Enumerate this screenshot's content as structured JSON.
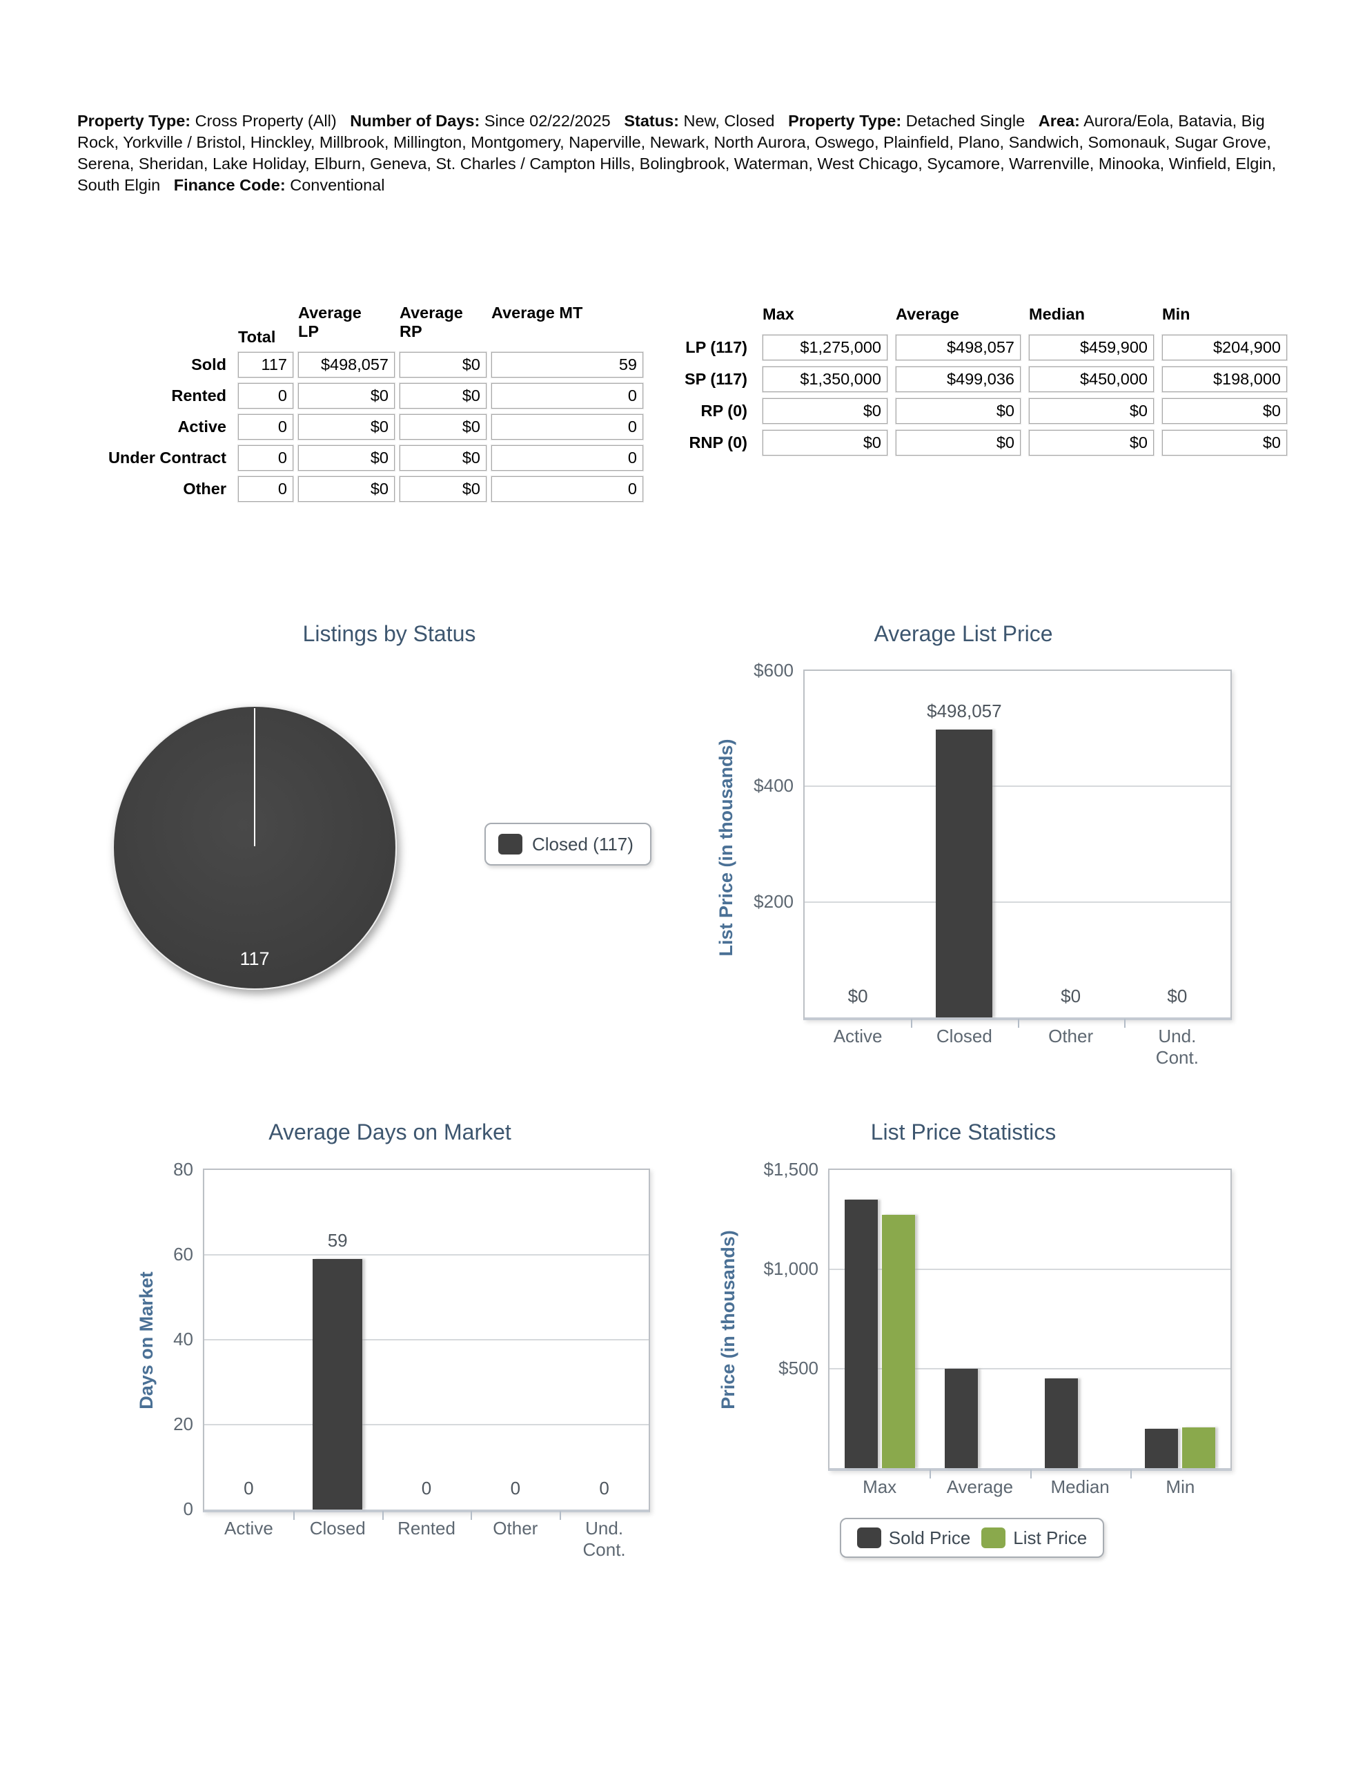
{
  "report_header": {
    "segments": [
      {
        "label": "Property Type:",
        "value": "Cross Property (All)"
      },
      {
        "label": "Number of Days:",
        "value": "Since 02/22/2025"
      },
      {
        "label": "Status:",
        "value": "New, Closed"
      },
      {
        "label": "Property Type:",
        "value": "Detached Single"
      },
      {
        "label": "Area:",
        "value": "Aurora/Eola, Batavia, Big Rock, Yorkville / Bristol, Hinckley, Millbrook, Millington, Montgomery, Naperville, Newark, North Aurora, Oswego, Plainfield, Plano, Sandwich, Somonauk, Sugar Grove, Serena, Sheridan, Lake Holiday, Elburn, Geneva, St. Charles / Campton Hills, Bolingbrook, Waterman, West Chicago, Sycamore, Warrenville, Minooka, Winfield, Elgin, South Elgin"
      },
      {
        "label": "Finance Code:",
        "value": "Conventional"
      }
    ]
  },
  "summary_table": {
    "column_headers": [
      "Total",
      "Average LP",
      "Average RP",
      "Average MT"
    ],
    "rows": [
      {
        "label": "Sold",
        "total": "117",
        "average_lp": "$498,057",
        "average_rp": "$0",
        "average_mt": "59"
      },
      {
        "label": "Rented",
        "total": "0",
        "average_lp": "$0",
        "average_rp": "$0",
        "average_mt": "0"
      },
      {
        "label": "Active",
        "total": "0",
        "average_lp": "$0",
        "average_rp": "$0",
        "average_mt": "0"
      },
      {
        "label": "Under Contract",
        "total": "0",
        "average_lp": "$0",
        "average_rp": "$0",
        "average_mt": "0"
      },
      {
        "label": "Other",
        "total": "0",
        "average_lp": "$0",
        "average_rp": "$0",
        "average_mt": "0"
      }
    ]
  },
  "stats_table": {
    "column_headers": [
      "Max",
      "Average",
      "Median",
      "Min"
    ],
    "rows": [
      {
        "label": "LP (117)",
        "max": "$1,275,000",
        "average": "$498,057",
        "median": "$459,900",
        "min": "$204,900"
      },
      {
        "label": "SP (117)",
        "max": "$1,350,000",
        "average": "$499,036",
        "median": "$450,000",
        "min": "$198,000"
      },
      {
        "label": "RP (0)",
        "max": "$0",
        "average": "$0",
        "median": "$0",
        "min": "$0"
      },
      {
        "label": "RNP (0)",
        "max": "$0",
        "average": "$0",
        "median": "$0",
        "min": "$0"
      }
    ]
  },
  "chart_data": [
    {
      "id": "listings-by-status",
      "type": "pie",
      "title": "Listings by Status",
      "slices": [
        {
          "label": "Closed (117)",
          "value": 117,
          "percent": 100,
          "color": "#404040",
          "data_label": "117"
        }
      ],
      "legend_position": "right"
    },
    {
      "id": "average-list-price",
      "type": "bar",
      "title": "Average List Price",
      "ylabel": "List Price (in thousands)",
      "ylim": [
        0,
        600
      ],
      "grid": true,
      "yticks": [
        {
          "value": 600,
          "label": "$600"
        },
        {
          "value": 400,
          "label": "$400"
        },
        {
          "value": 200,
          "label": "$200"
        }
      ],
      "categories": [
        "Active",
        "Closed",
        "Other",
        "Und. Cont."
      ],
      "values": [
        0,
        498.057,
        0,
        0
      ],
      "bar_labels": [
        "$0",
        "$498,057",
        "$0",
        "$0"
      ],
      "bar_color": "#404040"
    },
    {
      "id": "average-days-on-market",
      "type": "bar",
      "title": "Average Days on Market",
      "ylabel": "Days on Market",
      "ylim": [
        0,
        80
      ],
      "grid": true,
      "yticks": [
        {
          "value": 80,
          "label": "80"
        },
        {
          "value": 60,
          "label": "60"
        },
        {
          "value": 40,
          "label": "40"
        },
        {
          "value": 20,
          "label": "20"
        },
        {
          "value": 0,
          "label": "0"
        }
      ],
      "categories": [
        "Active",
        "Closed",
        "Rented",
        "Other",
        "Und. Cont."
      ],
      "values": [
        0,
        59,
        0,
        0,
        0
      ],
      "bar_labels": [
        "0",
        "59",
        "0",
        "0",
        "0"
      ],
      "bar_color": "#404040"
    },
    {
      "id": "list-price-statistics",
      "type": "bar",
      "title": "List Price Statistics",
      "ylabel": "Price (in thousands)",
      "ylim": [
        0,
        1500
      ],
      "grid": true,
      "yticks": [
        {
          "value": 1500,
          "label": "$1,500"
        },
        {
          "value": 1000,
          "label": "$1,000"
        },
        {
          "value": 500,
          "label": "$500"
        }
      ],
      "categories": [
        "Max",
        "Average",
        "Median",
        "Min"
      ],
      "series": [
        {
          "name": "Sold Price",
          "color": "#404040",
          "values": [
            1350,
            499.036,
            450,
            198
          ],
          "bar_visible": [
            true,
            true,
            true,
            true
          ]
        },
        {
          "name": "List Price",
          "color": "#8aa94c",
          "values": [
            1275,
            498.057,
            459.9,
            204.9
          ],
          "bar_visible": [
            true,
            false,
            false,
            true
          ]
        }
      ],
      "legend_position": "bottom"
    }
  ],
  "colors": {
    "chart_title": "#3d566f",
    "axis_title": "#4a7095",
    "tick_label": "#5d6771",
    "value_label": "#4e565e",
    "bar_dark": "#404040",
    "bar_green": "#8aa94c",
    "legend_text": "#3e4953",
    "grid_line": "#d6d9dc",
    "plot_border": "#bcc0c5"
  }
}
